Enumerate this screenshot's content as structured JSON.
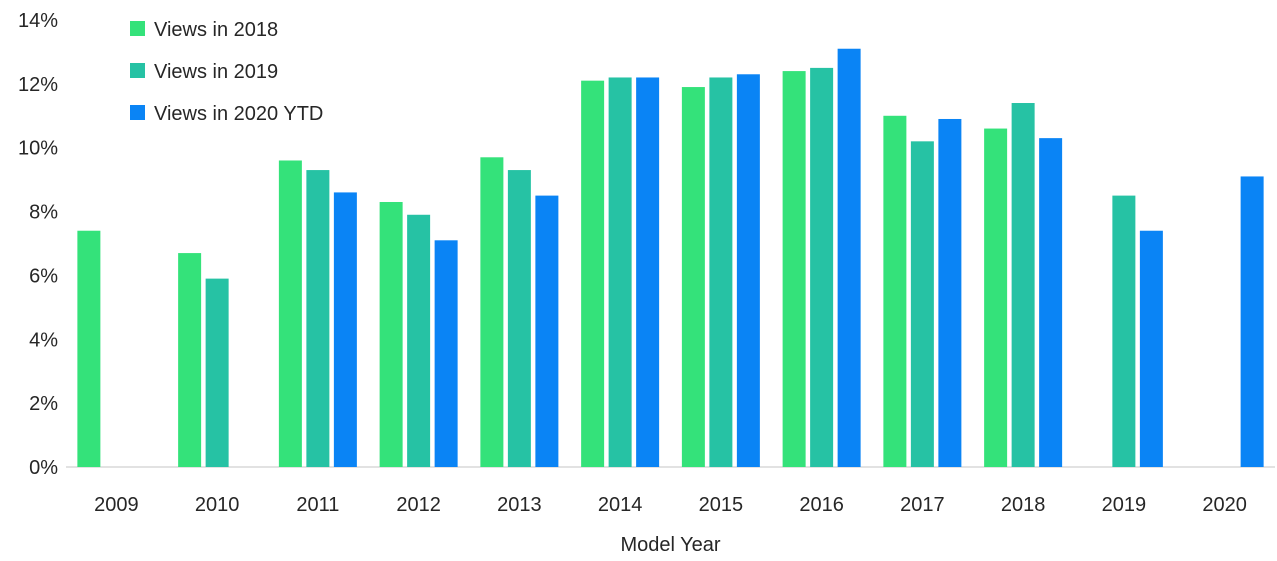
{
  "chart_data": {
    "type": "bar",
    "xlabel": "Model Year",
    "ylabel": "",
    "ylim": [
      0,
      14
    ],
    "yticks": [
      "0%",
      "2%",
      "4%",
      "6%",
      "8%",
      "10%",
      "12%",
      "14%"
    ],
    "ytick_values": [
      0,
      2,
      4,
      6,
      8,
      10,
      12,
      14
    ],
    "grid": false,
    "legend_position": "top-left",
    "categories": [
      "2009",
      "2010",
      "2011",
      "2012",
      "2013",
      "2014",
      "2015",
      "2016",
      "2017",
      "2018",
      "2019",
      "2020"
    ],
    "series": [
      {
        "name": "Views in 2018",
        "color": "#34e27a",
        "values": [
          7.4,
          6.7,
          9.6,
          8.3,
          9.7,
          12.1,
          11.9,
          12.4,
          11.0,
          10.6,
          null,
          null
        ]
      },
      {
        "name": "Views in 2019",
        "color": "#26c2a4",
        "values": [
          null,
          5.9,
          9.3,
          7.9,
          9.3,
          12.2,
          12.2,
          12.5,
          10.2,
          11.4,
          8.5,
          null
        ]
      },
      {
        "name": "Views in 2020 YTD",
        "color": "#0a84f5",
        "values": [
          null,
          null,
          8.6,
          7.1,
          8.5,
          12.2,
          12.3,
          13.1,
          10.9,
          10.3,
          7.4,
          9.1
        ]
      }
    ]
  }
}
